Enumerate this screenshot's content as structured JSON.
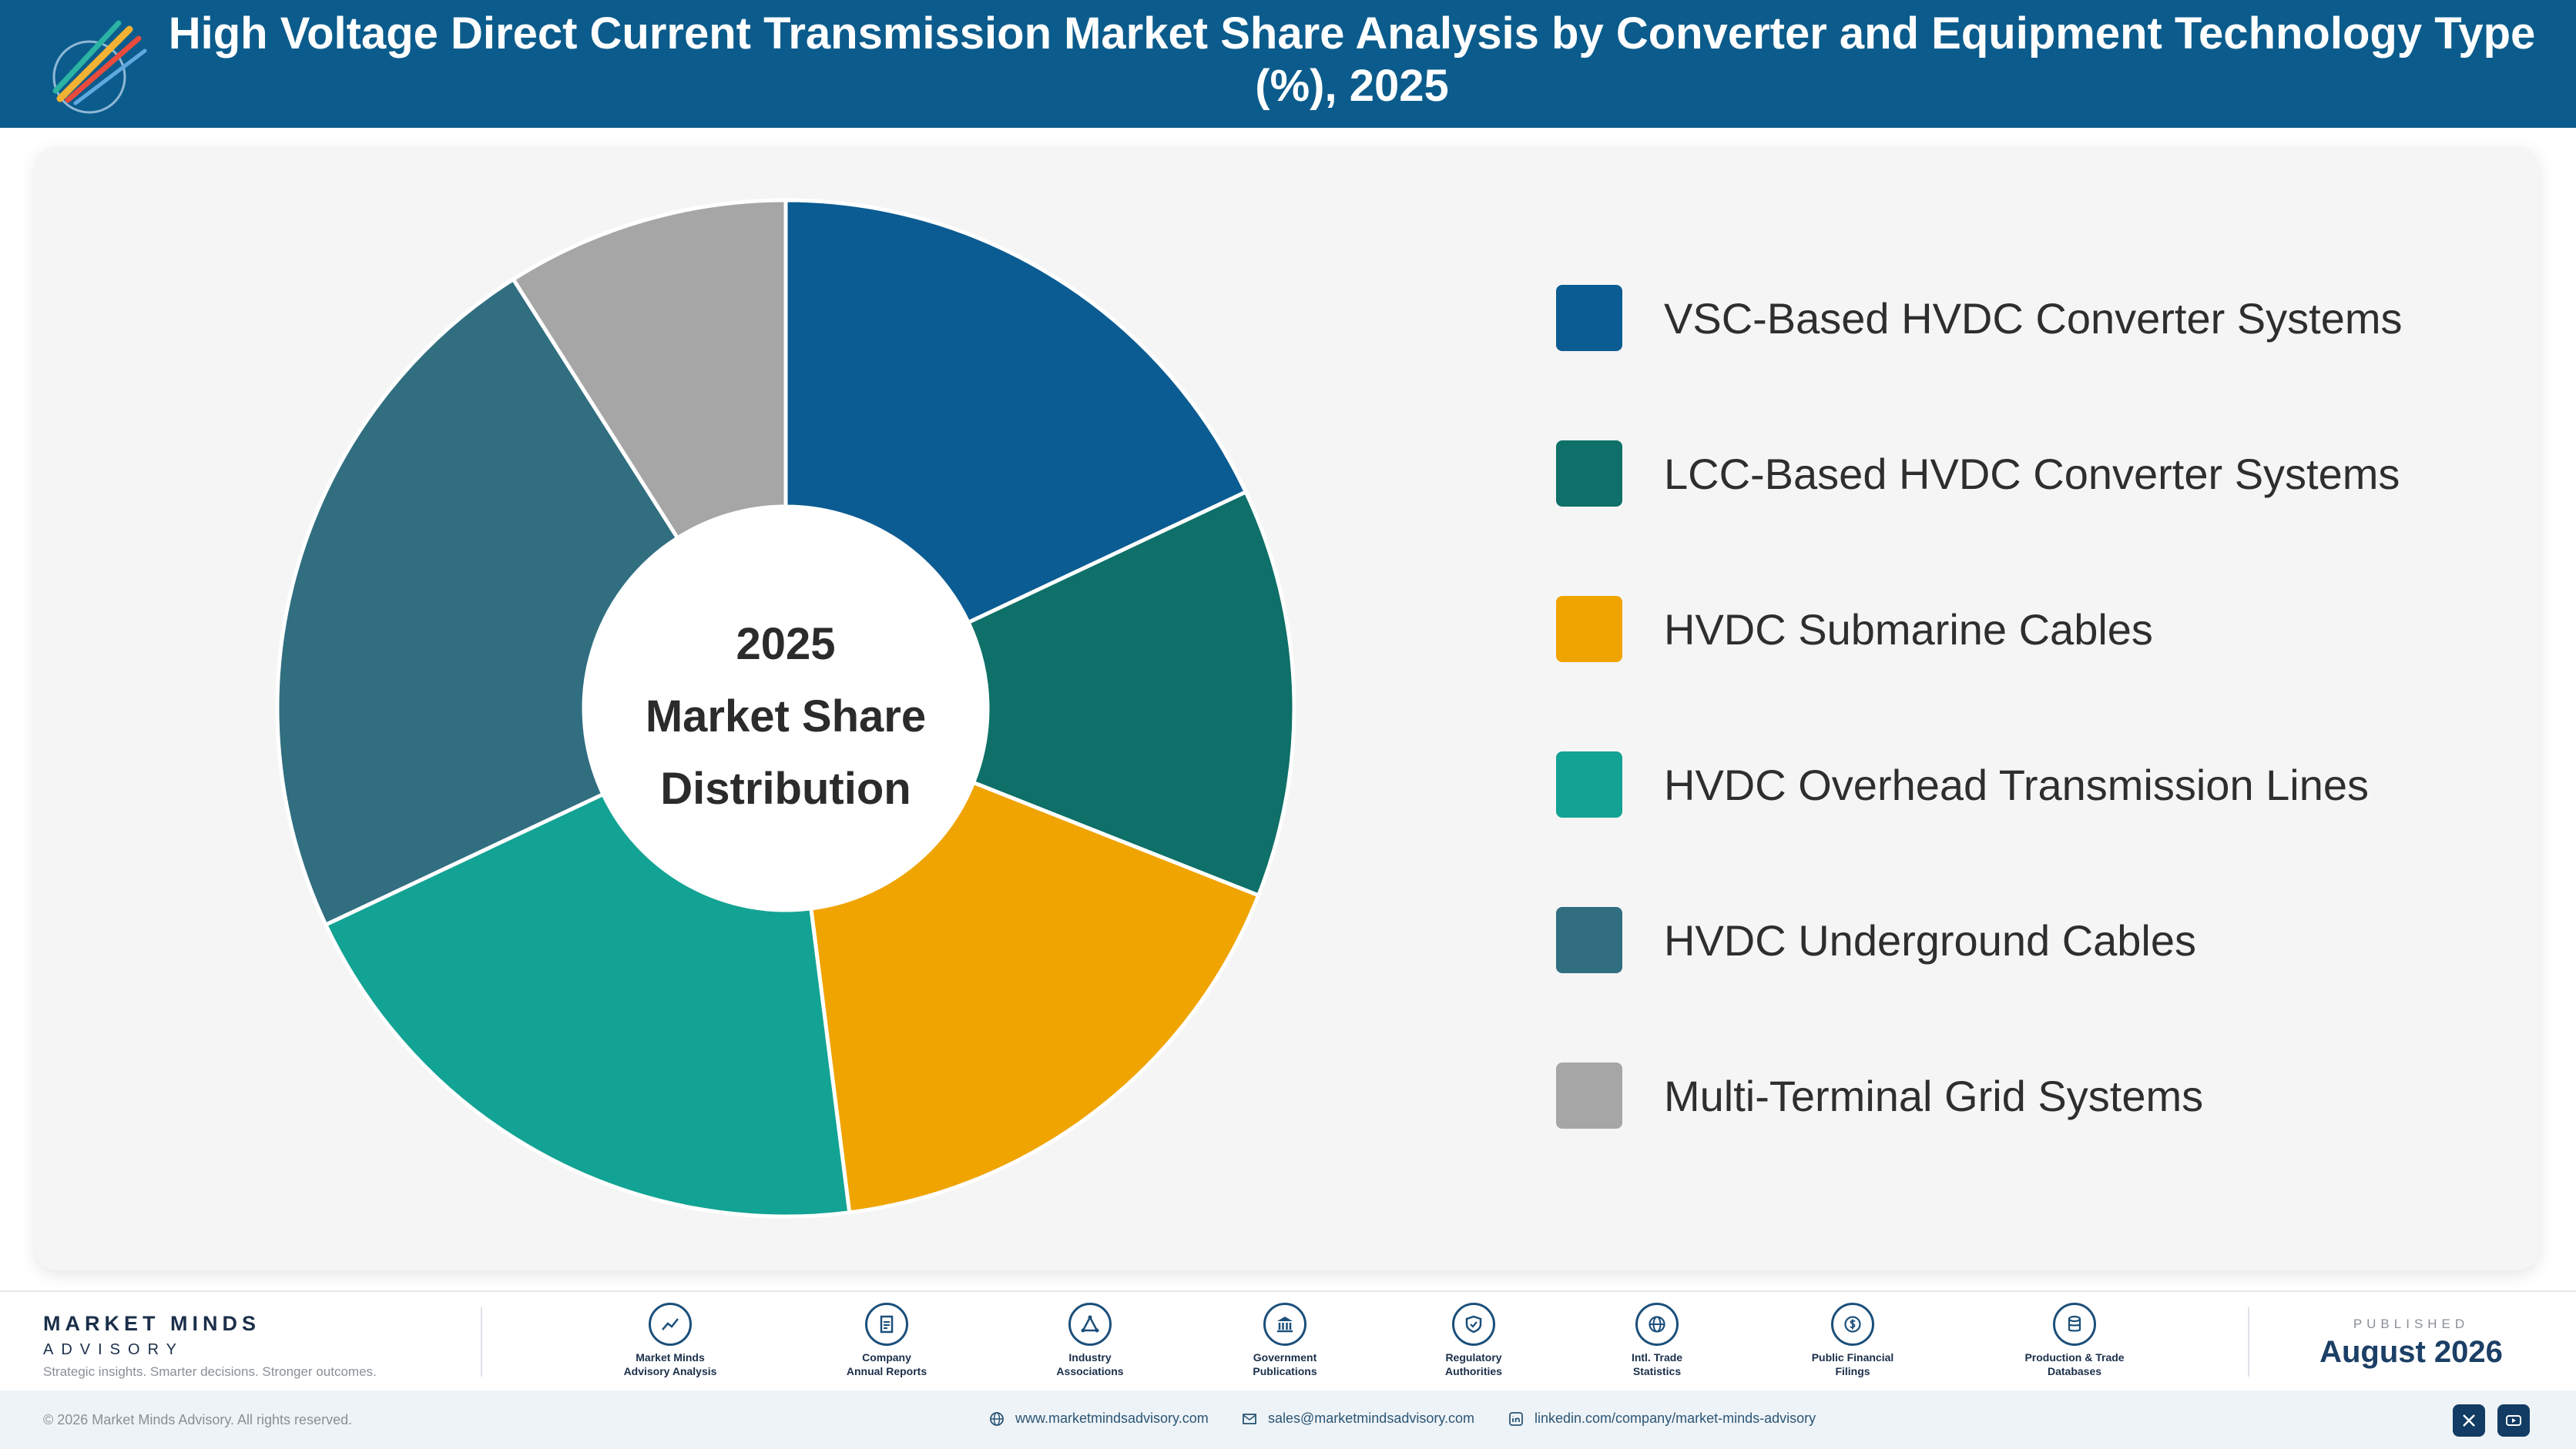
{
  "header": {
    "title": "High Voltage Direct Current Transmission Market Share Analysis by Converter and Equipment Technology Type (%), 2025"
  },
  "chart_data": {
    "type": "pie",
    "title": "High Voltage Direct Current Transmission Market Share Analysis by Converter and Equipment Technology Type (%), 2025",
    "center_label": [
      "2025",
      "Market Share",
      "Distribution"
    ],
    "labels": [
      "VSC-Based HVDC Converter Systems",
      "LCC-Based HVDC Converter Systems",
      "HVDC Submarine Cables",
      "HVDC Overhead Transmission Lines",
      "HVDC Underground Cables",
      "Multi-Terminal Grid Systems"
    ],
    "values": [
      18,
      13,
      17,
      20,
      23,
      9
    ],
    "colors": [
      "#0b5c92",
      "#0e7068",
      "#f0a400",
      "#12a394",
      "#306e80",
      "#a6a6a6"
    ],
    "legend_position": "right",
    "donut": true
  },
  "footer": {
    "brand_name": "MARKET MINDS",
    "brand_sub": "ADVISORY",
    "tagline": "Strategic insights. Smarter decisions. Stronger outcomes.",
    "sources": [
      {
        "label": "Market Minds\nAdvisory Analysis",
        "icon": "chart-line-icon"
      },
      {
        "label": "Company\nAnnual Reports",
        "icon": "document-icon"
      },
      {
        "label": "Industry\nAssociations",
        "icon": "network-icon"
      },
      {
        "label": "Government\nPublications",
        "icon": "government-building-icon"
      },
      {
        "label": "Regulatory\nAuthorities",
        "icon": "shield-check-icon"
      },
      {
        "label": "Intl. Trade\nStatistics",
        "icon": "globe-icon"
      },
      {
        "label": "Public Financial\nFilings",
        "icon": "dollar-coin-icon"
      },
      {
        "label": "Production & Trade\nDatabases",
        "icon": "database-icon"
      }
    ],
    "published_label": "PUBLISHED",
    "published_date": "August 2026"
  },
  "bottom_bar": {
    "copyright": "© 2026 Market Minds Advisory. All rights reserved.",
    "website": "www.marketmindsadvisory.com",
    "email": "sales@marketmindsadvisory.com",
    "linkedin": "linkedin.com/company/market-minds-advisory"
  }
}
